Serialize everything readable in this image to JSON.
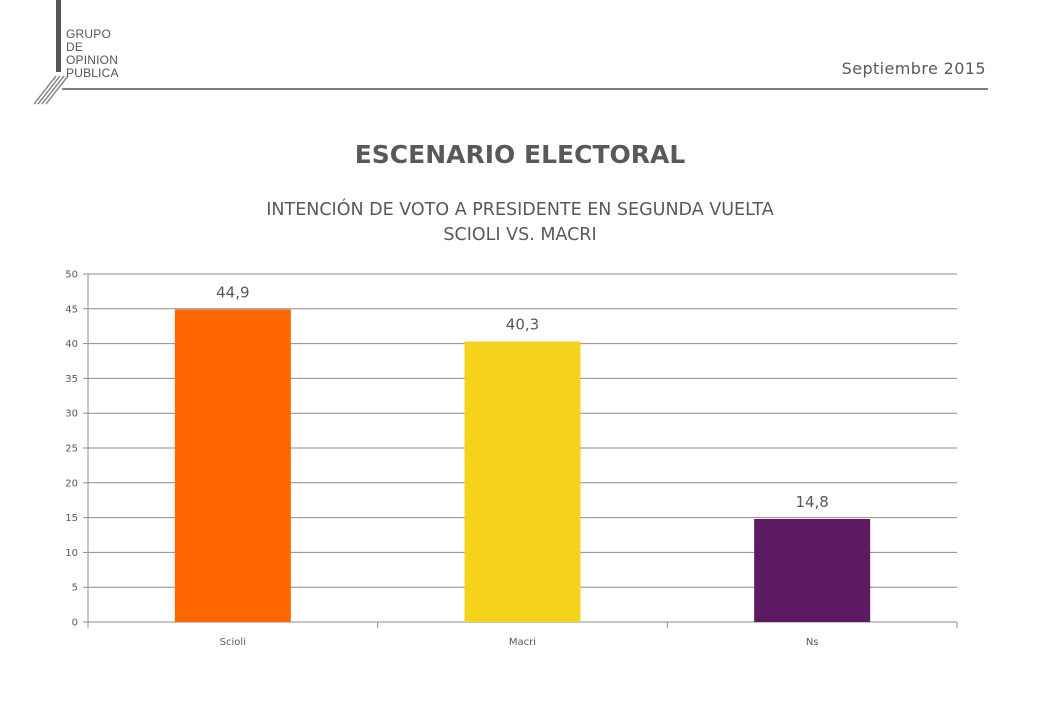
{
  "header": {
    "logo_lines": [
      "GRUPO",
      "DE",
      "OPINION",
      "PUBLICA"
    ],
    "date": "Septiembre 2015"
  },
  "page": {
    "title": "ESCENARIO ELECTORAL",
    "subtitle_line1": "INTENCIÓN DE VOTO A PRESIDENTE EN SEGUNDA VUELTA",
    "subtitle_line2": "SCIOLI VS. MACRI"
  },
  "chart_data": {
    "type": "bar",
    "categories": [
      "Scioli",
      "Macri",
      "Ns"
    ],
    "values": [
      44.9,
      40.3,
      14.8
    ],
    "data_labels": [
      "44,9",
      "40,3",
      "14,8"
    ],
    "colors": [
      "#ff6600",
      "#f5d31c",
      "#5c1a62"
    ],
    "ylim": [
      0,
      50
    ],
    "yticks": [
      0,
      5,
      10,
      15,
      20,
      25,
      30,
      35,
      40,
      45,
      50
    ],
    "grid": true,
    "legend": "none",
    "xlabel": "",
    "ylabel": ""
  }
}
